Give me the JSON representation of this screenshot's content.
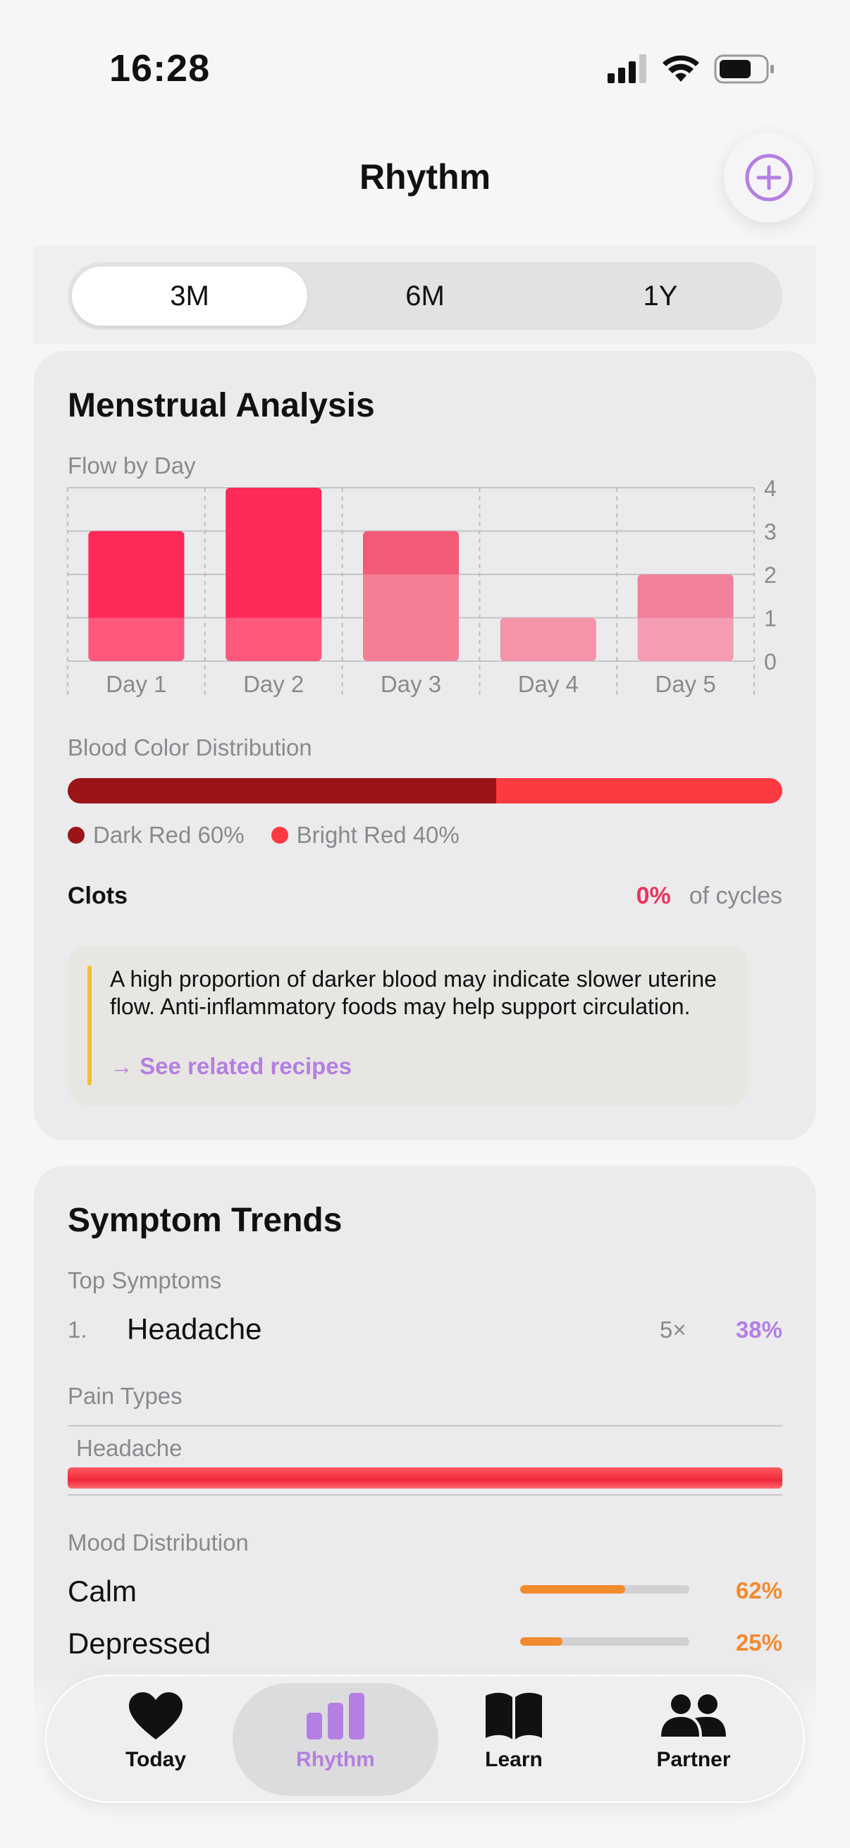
{
  "status_bar": {
    "time": "16:28"
  },
  "header": {
    "title": "Rhythm"
  },
  "segmented": {
    "options": [
      "3M",
      "6M",
      "1Y"
    ],
    "selected": "3M"
  },
  "menstrual": {
    "title": "Menstrual Analysis",
    "flow_label": "Flow by Day",
    "chart_data": {
      "type": "bar",
      "categories": [
        "Day 1",
        "Day 2",
        "Day 3",
        "Day 4",
        "Day 5"
      ],
      "values": [
        3,
        4,
        3,
        1,
        2
      ],
      "yticks": [
        0,
        1,
        2,
        3,
        4
      ],
      "ylim": [
        0,
        4
      ],
      "grid": true
    },
    "blood_color_label": "Blood Color Distribution",
    "blood_colors": [
      {
        "label": "Dark Red 60%",
        "percent": 60,
        "color": "#9a1418"
      },
      {
        "label": "Bright Red 40%",
        "percent": 40,
        "color": "#fb3a42"
      }
    ],
    "clots_label": "Clots",
    "clots_value": "0%",
    "clots_suffix": "of cycles",
    "note_text": "A high proportion of darker blood may indicate slower uterine flow. Anti-inflammatory foods may help support circulation.",
    "note_link": "→ See related recipes"
  },
  "symptoms": {
    "title": "Symptom Trends",
    "top_label": "Top Symptoms",
    "top": [
      {
        "rank": "1.",
        "name": "Headache",
        "count": "5×",
        "percent": "38%"
      }
    ],
    "pain_label": "Pain Types",
    "pain": [
      {
        "name": "Headache",
        "level": 1.0
      }
    ],
    "mood_label": "Mood Distribution",
    "moods": [
      {
        "name": "Calm",
        "percent": "62%",
        "value": 62
      },
      {
        "name": "Depressed",
        "percent": "25%",
        "value": 25
      }
    ]
  },
  "nav": {
    "items": [
      {
        "label": "Today",
        "icon": "heart-icon"
      },
      {
        "label": "Rhythm",
        "icon": "bar-chart-icon"
      },
      {
        "label": "Learn",
        "icon": "book-icon"
      },
      {
        "label": "Partner",
        "icon": "people-icon"
      }
    ],
    "active": "Rhythm"
  },
  "colors": {
    "accent": "#b47fe2",
    "flow_bar": "#fe2a58",
    "mood": "#f28a2e"
  }
}
